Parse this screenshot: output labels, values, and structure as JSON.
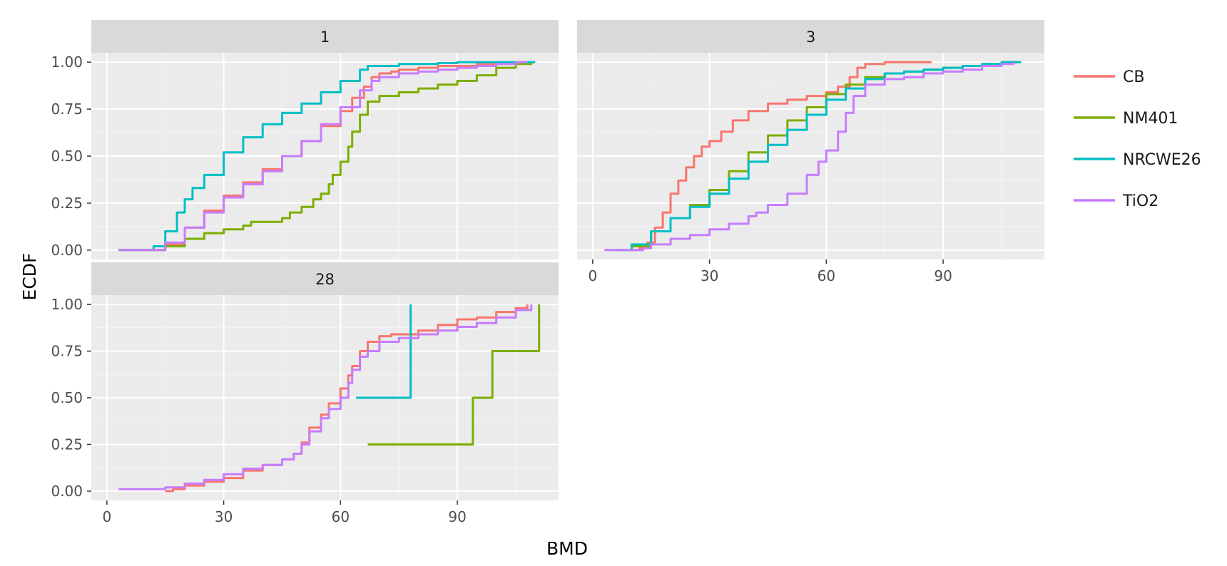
{
  "chart_data": {
    "type": "line",
    "subtype": "step-ecdf-faceted",
    "xlabel": "BMD",
    "ylabel": "ECDF",
    "xlim": [
      -4,
      116
    ],
    "ylim": [
      -0.05,
      1.05
    ],
    "x_ticks": [
      0,
      30,
      60,
      90
    ],
    "y_ticks": [
      0.0,
      0.25,
      0.5,
      0.75,
      1.0
    ],
    "x_tick_labels": [
      "0",
      "30",
      "60",
      "90"
    ],
    "y_tick_labels": [
      "0.00",
      "0.25",
      "0.50",
      "0.75",
      "1.00"
    ],
    "grid": true,
    "legend_position": "right",
    "legend": [
      {
        "name": "CB",
        "color": "#F8766D"
      },
      {
        "name": "NM401",
        "color": "#7CAE00"
      },
      {
        "name": "NRCWE26",
        "color": "#00BFC4"
      },
      {
        "name": "TiO2",
        "color": "#C77CFF"
      }
    ],
    "panels": [
      {
        "label": "1",
        "series": [
          {
            "name": "CB",
            "x": [
              3,
              10,
              15,
              20,
              25,
              30,
              35,
              40,
              45,
              50,
              55,
              60,
              63,
              66,
              68,
              70,
              73,
              75,
              80,
              85,
              90,
              95,
              100,
              105,
              108
            ],
            "y": [
              0,
              0,
              0.03,
              0.12,
              0.21,
              0.29,
              0.36,
              0.43,
              0.5,
              0.58,
              0.66,
              0.74,
              0.81,
              0.87,
              0.92,
              0.94,
              0.95,
              0.96,
              0.97,
              0.98,
              0.98,
              0.99,
              0.99,
              1,
              1
            ]
          },
          {
            "name": "NM401",
            "x": [
              3,
              7,
              10,
              15,
              20,
              25,
              30,
              35,
              37,
              40,
              43,
              45,
              47,
              50,
              53,
              55,
              57,
              58,
              60,
              62,
              63,
              65,
              67,
              70,
              75,
              80,
              85,
              90,
              95,
              100,
              105,
              109
            ],
            "y": [
              0,
              0,
              0,
              0.02,
              0.06,
              0.09,
              0.11,
              0.13,
              0.15,
              0.15,
              0.15,
              0.17,
              0.2,
              0.23,
              0.27,
              0.3,
              0.35,
              0.4,
              0.47,
              0.55,
              0.63,
              0.72,
              0.79,
              0.82,
              0.84,
              0.86,
              0.88,
              0.9,
              0.93,
              0.97,
              0.99,
              1
            ]
          },
          {
            "name": "NRCWE26",
            "x": [
              3,
              8,
              10,
              12,
              15,
              18,
              20,
              22,
              25,
              30,
              35,
              40,
              45,
              50,
              55,
              60,
              65,
              67,
              70,
              75,
              80,
              85,
              90,
              95,
              100,
              105,
              110
            ],
            "y": [
              0,
              0,
              0,
              0.02,
              0.1,
              0.2,
              0.27,
              0.33,
              0.4,
              0.52,
              0.6,
              0.67,
              0.73,
              0.78,
              0.84,
              0.9,
              0.96,
              0.98,
              0.98,
              0.99,
              0.99,
              0.995,
              1,
              1,
              1,
              1,
              1
            ]
          },
          {
            "name": "TiO2",
            "x": [
              3,
              10,
              15,
              20,
              25,
              30,
              35,
              40,
              45,
              50,
              55,
              60,
              65,
              68,
              70,
              75,
              80,
              85,
              90,
              95,
              100,
              105,
              108
            ],
            "y": [
              0,
              0,
              0.04,
              0.12,
              0.2,
              0.28,
              0.35,
              0.42,
              0.5,
              0.58,
              0.67,
              0.76,
              0.85,
              0.9,
              0.92,
              0.94,
              0.95,
              0.96,
              0.97,
              0.98,
              0.99,
              1,
              1
            ]
          }
        ]
      },
      {
        "label": "3",
        "series": [
          {
            "name": "CB",
            "x": [
              10,
              12,
              14,
              16,
              18,
              20,
              22,
              24,
              26,
              28,
              30,
              33,
              36,
              40,
              45,
              50,
              55,
              60,
              63,
              66,
              68,
              70,
              75,
              80,
              87
            ],
            "y": [
              0,
              0.01,
              0.04,
              0.12,
              0.2,
              0.3,
              0.37,
              0.44,
              0.5,
              0.55,
              0.58,
              0.63,
              0.69,
              0.74,
              0.78,
              0.8,
              0.82,
              0.84,
              0.87,
              0.92,
              0.97,
              0.99,
              1,
              1,
              1
            ]
          },
          {
            "name": "NM401",
            "x": [
              6,
              10,
              15,
              20,
              25,
              30,
              35,
              40,
              45,
              50,
              55,
              60,
              65,
              70,
              75,
              80,
              85,
              90,
              95,
              100,
              105,
              109
            ],
            "y": [
              0,
              0.02,
              0.1,
              0.17,
              0.24,
              0.32,
              0.42,
              0.52,
              0.61,
              0.69,
              0.76,
              0.83,
              0.88,
              0.92,
              0.94,
              0.95,
              0.96,
              0.97,
              0.98,
              0.99,
              1,
              1
            ]
          },
          {
            "name": "NRCWE26",
            "x": [
              6,
              10,
              15,
              20,
              25,
              30,
              35,
              40,
              45,
              50,
              55,
              60,
              65,
              70,
              75,
              80,
              85,
              90,
              95,
              100,
              105,
              110
            ],
            "y": [
              0,
              0.03,
              0.1,
              0.17,
              0.23,
              0.3,
              0.38,
              0.47,
              0.56,
              0.64,
              0.72,
              0.8,
              0.86,
              0.91,
              0.94,
              0.95,
              0.96,
              0.97,
              0.98,
              0.99,
              1,
              1
            ]
          },
          {
            "name": "TiO2",
            "x": [
              3,
              10,
              13,
              15,
              20,
              25,
              30,
              35,
              40,
              42,
              45,
              50,
              55,
              58,
              60,
              63,
              65,
              67,
              70,
              75,
              80,
              85,
              90,
              95,
              100,
              105,
              108
            ],
            "y": [
              0,
              0,
              0.01,
              0.03,
              0.06,
              0.08,
              0.11,
              0.14,
              0.18,
              0.2,
              0.24,
              0.3,
              0.4,
              0.47,
              0.53,
              0.63,
              0.73,
              0.82,
              0.88,
              0.91,
              0.92,
              0.94,
              0.95,
              0.96,
              0.98,
              0.99,
              1
            ]
          }
        ]
      },
      {
        "label": "28",
        "series": [
          {
            "name": "CB",
            "x": [
              15,
              17,
              20,
              25,
              30,
              35,
              40,
              45,
              48,
              50,
              52,
              55,
              57,
              60,
              62,
              63,
              65,
              67,
              70,
              73,
              75,
              80,
              85,
              90,
              95,
              100,
              105,
              108
            ],
            "y": [
              0,
              0.01,
              0.03,
              0.05,
              0.07,
              0.11,
              0.14,
              0.17,
              0.2,
              0.26,
              0.34,
              0.41,
              0.47,
              0.55,
              0.62,
              0.67,
              0.75,
              0.8,
              0.83,
              0.84,
              0.84,
              0.86,
              0.89,
              0.92,
              0.93,
              0.96,
              0.98,
              1
            ]
          },
          {
            "name": "NM401",
            "x": [
              67,
              94,
              94,
              99,
              99,
              111,
              111
            ],
            "y": [
              0.25,
              0.25,
              0.5,
              0.5,
              0.75,
              0.75,
              1.0
            ]
          },
          {
            "name": "NRCWE26",
            "x": [
              64,
              78,
              78
            ],
            "y": [
              0.5,
              0.5,
              1.0
            ]
          },
          {
            "name": "TiO2",
            "x": [
              3,
              10,
              15,
              20,
              25,
              30,
              35,
              40,
              45,
              48,
              50,
              52,
              55,
              57,
              60,
              62,
              63,
              65,
              67,
              70,
              75,
              80,
              85,
              90,
              95,
              100,
              105,
              109
            ],
            "y": [
              0.01,
              0.01,
              0.02,
              0.04,
              0.06,
              0.09,
              0.12,
              0.14,
              0.17,
              0.2,
              0.25,
              0.32,
              0.39,
              0.44,
              0.5,
              0.58,
              0.65,
              0.72,
              0.75,
              0.8,
              0.82,
              0.84,
              0.86,
              0.88,
              0.9,
              0.93,
              0.97,
              1
            ]
          }
        ]
      }
    ]
  }
}
